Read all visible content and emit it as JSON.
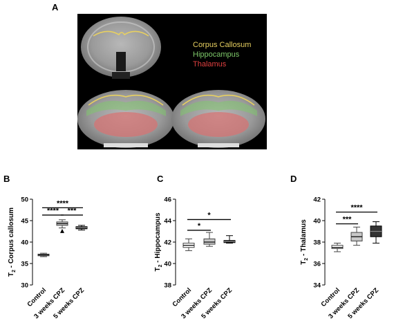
{
  "figure": {
    "panel_a": {
      "letter": "A",
      "legend": [
        {
          "label": "Corpus Callosum",
          "color": "#e8d060"
        },
        {
          "label": "Hippocampus",
          "color": "#7ec96a"
        },
        {
          "label": "Thalamus",
          "color": "#e04040"
        }
      ]
    }
  },
  "chart_data": [
    {
      "panel": "B",
      "type": "box",
      "ylabel_main": "T",
      "ylabel_sub": "2",
      "ylabel_rest": " - Corpus callosum",
      "ylim": [
        30,
        50
      ],
      "yticks": [
        "30",
        "35",
        "40",
        "45",
        "50"
      ],
      "categories": [
        "Control",
        "3 weeks CPZ",
        "5 weeks CPZ"
      ],
      "boxes": [
        {
          "min": 36.6,
          "q1": 36.8,
          "median": 37.0,
          "q3": 37.2,
          "max": 37.4,
          "fill": "#ffffff"
        },
        {
          "min": 43.3,
          "q1": 43.9,
          "median": 44.3,
          "q3": 44.7,
          "max": 45.2,
          "fill": "#c8c8c8",
          "outliers": [
            42.6
          ]
        },
        {
          "min": 42.8,
          "q1": 43.1,
          "median": 43.4,
          "q3": 43.6,
          "max": 43.9,
          "fill": "#333333"
        }
      ],
      "significance": [
        {
          "from": 0,
          "to": 2,
          "label": "****",
          "y": 48.0
        },
        {
          "from": 0,
          "to": 1,
          "label": "****",
          "y": 46.3
        },
        {
          "from": 1,
          "to": 2,
          "label": "***",
          "y": 46.3
        }
      ]
    },
    {
      "panel": "C",
      "type": "box",
      "ylabel_main": "T",
      "ylabel_sub": "2",
      "ylabel_rest": " - Hippocampus",
      "ylim": [
        38,
        46
      ],
      "yticks": [
        "38",
        "40",
        "42",
        "44",
        "46"
      ],
      "categories": [
        "Control",
        "3 weeks CPZ",
        "5 weeks CPZ"
      ],
      "boxes": [
        {
          "min": 41.2,
          "q1": 41.5,
          "median": 41.7,
          "q3": 41.9,
          "max": 42.3,
          "fill": "#ffffff"
        },
        {
          "min": 41.6,
          "q1": 41.8,
          "median": 42.0,
          "q3": 42.3,
          "max": 42.9,
          "fill": "#c8c8c8"
        },
        {
          "min": 41.9,
          "q1": 41.95,
          "median": 42.05,
          "q3": 42.15,
          "max": 42.6,
          "fill": "#333333"
        }
      ],
      "significance": [
        {
          "from": 0,
          "to": 2,
          "label": "*",
          "y": 44.1
        },
        {
          "from": 0,
          "to": 1,
          "label": "*",
          "y": 43.1
        }
      ]
    },
    {
      "panel": "D",
      "type": "box",
      "ylabel_main": "T",
      "ylabel_sub": "2",
      "ylabel_rest": " - Thalamus",
      "ylim": [
        34,
        42
      ],
      "yticks": [
        "34",
        "36",
        "38",
        "40",
        "42"
      ],
      "categories": [
        "Control",
        "3 weeks CPZ",
        "5 weeks CPZ"
      ],
      "boxes": [
        {
          "min": 37.1,
          "q1": 37.4,
          "median": 37.5,
          "q3": 37.7,
          "max": 37.9,
          "fill": "#ffffff"
        },
        {
          "min": 37.7,
          "q1": 38.1,
          "median": 38.5,
          "q3": 38.9,
          "max": 39.4,
          "fill": "#c8c8c8"
        },
        {
          "min": 37.9,
          "q1": 38.5,
          "median": 39.0,
          "q3": 39.5,
          "max": 39.9,
          "fill": "#333333"
        }
      ],
      "significance": [
        {
          "from": 0,
          "to": 2,
          "label": "****",
          "y": 40.8
        },
        {
          "from": 0,
          "to": 1,
          "label": "***",
          "y": 39.7
        }
      ]
    }
  ]
}
